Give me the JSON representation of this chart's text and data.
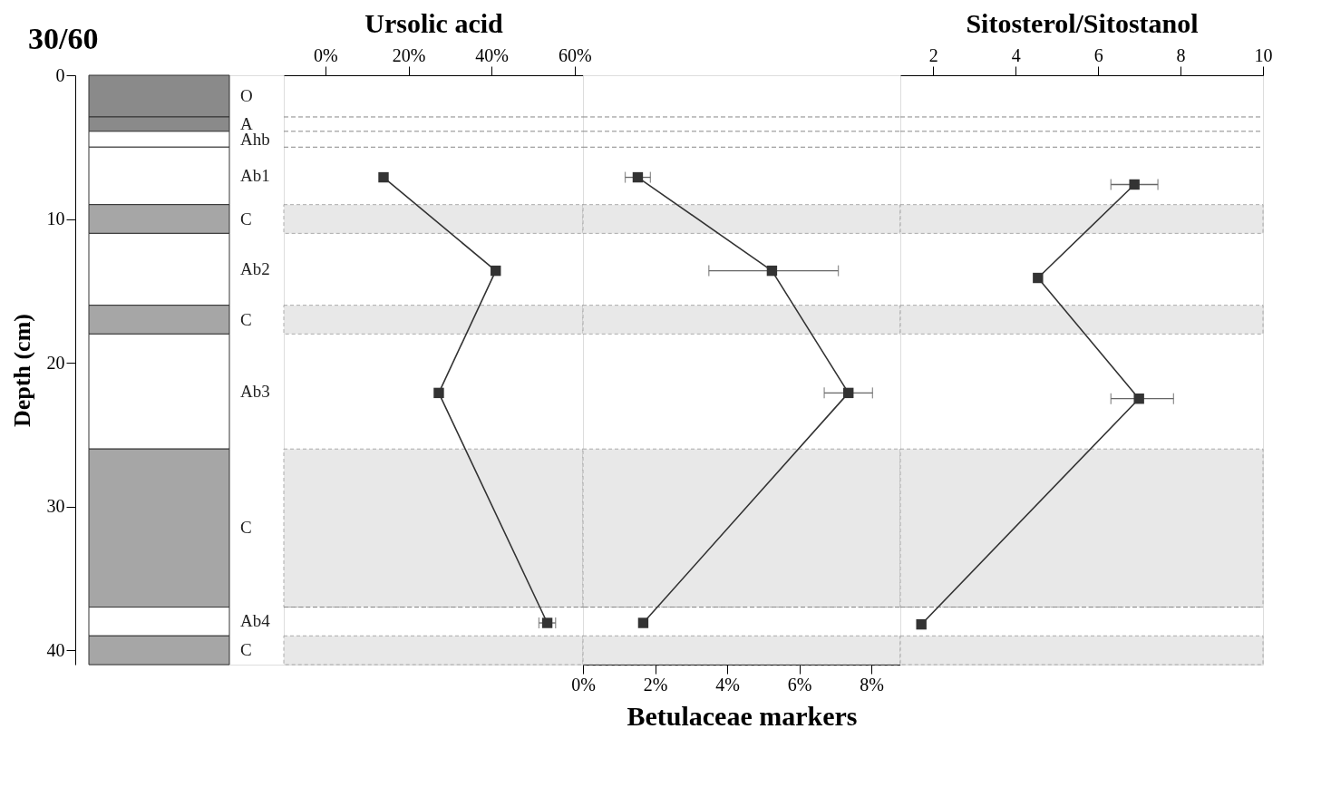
{
  "chart_data": [
    {
      "type": "bar",
      "stacked": true,
      "title": "30/60",
      "ylabel": "Depth (cm)",
      "categories": [
        null
      ],
      "ylim": [
        41,
        0
      ],
      "yticks": [
        0,
        10,
        20,
        30,
        40
      ],
      "tick_labels": "y",
      "series": [
        {
          "name": "O",
          "color": "#8a8a8a",
          "values": [
            2.9
          ]
        },
        {
          "name": "A",
          "color": "#8a8a8a",
          "values": [
            1.0
          ]
        },
        {
          "name": "Ahb",
          "color": "#ffffff",
          "values": [
            1.1
          ]
        },
        {
          "name": "Ab1",
          "color": "#ffffff",
          "values": [
            4.0
          ]
        },
        {
          "name": "C",
          "color": "#a6a6a6",
          "values": [
            2.0
          ]
        },
        {
          "name": "Ab2",
          "color": "#ffffff",
          "values": [
            5.0
          ]
        },
        {
          "name": "C",
          "color": "#a6a6a6",
          "values": [
            2.0
          ]
        },
        {
          "name": "Ab3",
          "color": "#ffffff",
          "values": [
            8.0
          ]
        },
        {
          "name": "C",
          "color": "#a6a6a6",
          "values": [
            11.0
          ]
        },
        {
          "name": "Ab4",
          "color": "#ffffff",
          "values": [
            2.0
          ]
        },
        {
          "name": "C",
          "color": "#a6a6a6",
          "values": [
            2.0
          ]
        }
      ]
    },
    {
      "type": "line",
      "xlabel": "Ursolic acid",
      "xlim": [
        -10,
        62
      ],
      "xticks": [
        {
          "value": 0,
          "label": "0%"
        },
        {
          "value": 20,
          "label": "20%"
        },
        {
          "value": 40,
          "label": "40%"
        },
        {
          "value": 60,
          "label": "60%"
        }
      ],
      "ylim": [
        41,
        0
      ],
      "tick_labels": "x",
      "grid": false,
      "marker": "square",
      "line_style": "solid",
      "series": [
        {
          "color": "#333333",
          "x": [
            14,
            41,
            27.3,
            53.4
          ],
          "values": [
            7.1,
            13.6,
            22.1,
            38.1
          ],
          "xerrors": [
            null,
            null,
            null,
            2
          ]
        }
      ],
      "ref_lines": [
        {
          "axis": "y",
          "value": 2.9,
          "line_style": "dashed",
          "color": "#888888"
        },
        {
          "axis": "y",
          "value": 3.9,
          "line_style": "dashed",
          "color": "#888888"
        },
        {
          "axis": "y",
          "value": 5.0,
          "line_style": "dashed",
          "color": "#888888"
        },
        {
          "axis": "y",
          "value": 37.0,
          "line_style": "dashed",
          "color": "#888888"
        }
      ],
      "bands": [
        {
          "axis": "y",
          "from": 9,
          "to": 11,
          "color": "#e8e8e8"
        },
        {
          "axis": "y",
          "from": 16,
          "to": 18,
          "color": "#e8e8e8"
        },
        {
          "axis": "y",
          "from": 26,
          "to": 37,
          "color": "#e8e8e8"
        },
        {
          "axis": "y",
          "from": 39,
          "to": 41,
          "color": "#e8e8e8"
        }
      ]
    },
    {
      "type": "line",
      "xlabel": "Betulaceae markers",
      "xlim": [
        0,
        8.8
      ],
      "xticks": [
        {
          "value": 0,
          "label": "0%"
        },
        {
          "value": 2,
          "label": "2%"
        },
        {
          "value": 4,
          "label": "4%"
        },
        {
          "value": 6,
          "label": "6%"
        },
        {
          "value": 8,
          "label": "8%"
        }
      ],
      "ylim": [
        41,
        0
      ],
      "tick_labels": "x",
      "grid": false,
      "marker": "square",
      "line_style": "solid",
      "series": [
        {
          "color": "#333333",
          "x": [
            1.52,
            5.24,
            7.36,
            1.67
          ],
          "values": [
            7.1,
            13.6,
            22.1,
            38.1
          ],
          "xerrors": [
            0.35,
            [
              3.49,
              7.08
            ],
            0.67,
            null
          ]
        }
      ],
      "ref_lines": [
        {
          "axis": "y",
          "value": 2.9,
          "line_style": "dashed",
          "color": "#888888"
        },
        {
          "axis": "y",
          "value": 3.9,
          "line_style": "dashed",
          "color": "#888888"
        },
        {
          "axis": "y",
          "value": 5.0,
          "line_style": "dashed",
          "color": "#888888"
        },
        {
          "axis": "y",
          "value": 37.0,
          "line_style": "dashed",
          "color": "#888888"
        }
      ],
      "bands": [
        {
          "axis": "y",
          "from": 9,
          "to": 11,
          "color": "#e8e8e8"
        },
        {
          "axis": "y",
          "from": 16,
          "to": 18,
          "color": "#e8e8e8"
        },
        {
          "axis": "y",
          "from": 26,
          "to": 37,
          "color": "#e8e8e8"
        },
        {
          "axis": "y",
          "from": 39,
          "to": 41,
          "color": "#e8e8e8"
        }
      ]
    },
    {
      "type": "line",
      "xlabel": "Sitosterol/Sitostanol",
      "xlim": [
        1.2,
        10
      ],
      "xticks": [
        2,
        4,
        6,
        8,
        10
      ],
      "ylim": [
        41,
        0
      ],
      "tick_labels": "x",
      "grid": false,
      "marker": "square",
      "line_style": "solid",
      "series": [
        {
          "color": "#333333",
          "x": [
            6.88,
            4.54,
            6.99,
            1.71
          ],
          "values": [
            7.6,
            14.1,
            22.5,
            38.2
          ],
          "xerrors": [
            0.57,
            null,
            [
              6.31,
              7.83
            ],
            null
          ]
        }
      ],
      "ref_lines": [
        {
          "axis": "y",
          "value": 2.9,
          "line_style": "dashed",
          "color": "#888888"
        },
        {
          "axis": "y",
          "value": 3.9,
          "line_style": "dashed",
          "color": "#888888"
        },
        {
          "axis": "y",
          "value": 5.0,
          "line_style": "dashed",
          "color": "#888888"
        },
        {
          "axis": "y",
          "value": 37.0,
          "line_style": "dashed",
          "color": "#888888"
        }
      ],
      "bands": [
        {
          "axis": "y",
          "from": 9,
          "to": 11,
          "color": "#e8e8e8"
        },
        {
          "axis": "y",
          "from": 16,
          "to": 18,
          "color": "#e8e8e8"
        },
        {
          "axis": "y",
          "from": 26,
          "to": 37,
          "color": "#e8e8e8"
        },
        {
          "axis": "y",
          "from": 39,
          "to": 41,
          "color": "#e8e8e8"
        }
      ]
    }
  ]
}
